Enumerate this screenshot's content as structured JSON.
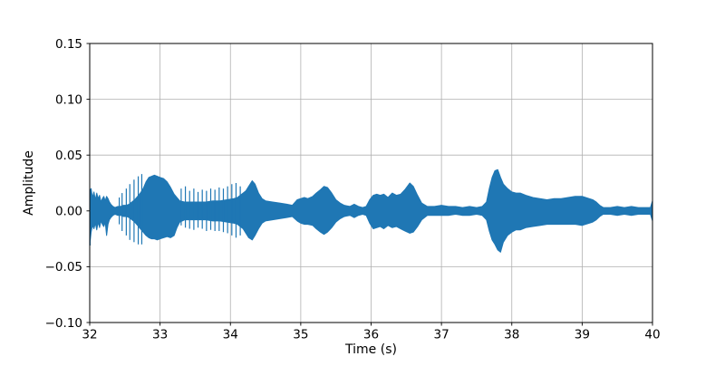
{
  "figure": {
    "background": "#ffffff"
  },
  "chart_data": {
    "type": "line",
    "subtype": "audio-waveform",
    "title": "",
    "xlabel": "Time (s)",
    "ylabel": "Amplitude",
    "xlim": [
      32,
      40
    ],
    "ylim": [
      -0.1,
      0.15
    ],
    "xticks": [
      32,
      33,
      34,
      35,
      36,
      37,
      38,
      39,
      40
    ],
    "xtick_labels": [
      "32",
      "33",
      "34",
      "35",
      "36",
      "37",
      "38",
      "39",
      "40"
    ],
    "yticks": [
      -0.1,
      -0.05,
      0.0,
      0.05,
      0.1,
      0.15
    ],
    "ytick_labels": [
      "−0.10",
      "−0.05",
      "0.00",
      "0.05",
      "0.10",
      "0.15"
    ],
    "grid": true,
    "grid_color": "#b0b0b0",
    "spine_color": "#000000",
    "line_color": "#1f77b4",
    "legend": null,
    "envelope_note": "samples of [time_s, lower_amplitude, upper_amplitude] of the waveform envelope",
    "envelope": [
      [
        32.0,
        -0.031,
        0.018
      ],
      [
        32.02,
        -0.019,
        0.02
      ],
      [
        32.04,
        -0.013,
        0.012
      ],
      [
        32.06,
        -0.016,
        0.017
      ],
      [
        32.08,
        -0.011,
        0.01
      ],
      [
        32.1,
        -0.017,
        0.016
      ],
      [
        32.12,
        -0.01,
        0.011
      ],
      [
        32.14,
        -0.015,
        0.014
      ],
      [
        32.16,
        -0.009,
        0.008
      ],
      [
        32.18,
        -0.012,
        0.011
      ],
      [
        32.2,
        -0.014,
        0.013
      ],
      [
        32.22,
        -0.01,
        0.009
      ],
      [
        32.24,
        -0.022,
        0.013
      ],
      [
        32.26,
        -0.012,
        0.011
      ],
      [
        32.28,
        -0.008,
        0.008
      ],
      [
        32.3,
        -0.006,
        0.006
      ],
      [
        32.33,
        -0.004,
        0.004
      ],
      [
        32.36,
        -0.003,
        0.003
      ],
      [
        32.4,
        -0.004,
        0.004
      ],
      [
        32.44,
        -0.004,
        0.004
      ],
      [
        32.48,
        -0.005,
        0.005
      ],
      [
        32.52,
        -0.005,
        0.005
      ],
      [
        32.56,
        -0.006,
        0.006
      ],
      [
        32.6,
        -0.008,
        0.008
      ],
      [
        32.64,
        -0.01,
        0.01
      ],
      [
        32.68,
        -0.013,
        0.013
      ],
      [
        32.72,
        -0.016,
        0.016
      ],
      [
        32.76,
        -0.019,
        0.02
      ],
      [
        32.8,
        -0.022,
        0.026
      ],
      [
        32.84,
        -0.024,
        0.03
      ],
      [
        32.88,
        -0.025,
        0.031
      ],
      [
        32.92,
        -0.025,
        0.032
      ],
      [
        32.96,
        -0.026,
        0.031
      ],
      [
        33.0,
        -0.025,
        0.03
      ],
      [
        33.05,
        -0.024,
        0.029
      ],
      [
        33.1,
        -0.023,
        0.026
      ],
      [
        33.15,
        -0.024,
        0.021
      ],
      [
        33.2,
        -0.022,
        0.015
      ],
      [
        33.24,
        -0.015,
        0.012
      ],
      [
        33.28,
        -0.01,
        0.009
      ],
      [
        33.35,
        -0.008,
        0.008
      ],
      [
        33.45,
        -0.008,
        0.008
      ],
      [
        33.55,
        -0.008,
        0.008
      ],
      [
        33.65,
        -0.008,
        0.008
      ],
      [
        33.75,
        -0.009,
        0.009
      ],
      [
        33.85,
        -0.009,
        0.009
      ],
      [
        33.95,
        -0.01,
        0.01
      ],
      [
        34.05,
        -0.011,
        0.011
      ],
      [
        34.1,
        -0.012,
        0.012
      ],
      [
        34.14,
        -0.014,
        0.014
      ],
      [
        34.18,
        -0.016,
        0.016
      ],
      [
        34.22,
        -0.02,
        0.018
      ],
      [
        34.26,
        -0.024,
        0.022
      ],
      [
        34.31,
        -0.026,
        0.027
      ],
      [
        34.35,
        -0.022,
        0.024
      ],
      [
        34.4,
        -0.016,
        0.016
      ],
      [
        34.45,
        -0.011,
        0.011
      ],
      [
        34.5,
        -0.009,
        0.009
      ],
      [
        34.6,
        -0.008,
        0.008
      ],
      [
        34.7,
        -0.007,
        0.007
      ],
      [
        34.8,
        -0.006,
        0.006
      ],
      [
        34.88,
        -0.005,
        0.005
      ],
      [
        34.95,
        -0.009,
        0.01
      ],
      [
        35.0,
        -0.011,
        0.011
      ],
      [
        35.05,
        -0.012,
        0.012
      ],
      [
        35.1,
        -0.012,
        0.011
      ],
      [
        35.17,
        -0.013,
        0.013
      ],
      [
        35.22,
        -0.016,
        0.016
      ],
      [
        35.28,
        -0.019,
        0.019
      ],
      [
        35.33,
        -0.021,
        0.022
      ],
      [
        35.38,
        -0.019,
        0.021
      ],
      [
        35.44,
        -0.015,
        0.016
      ],
      [
        35.5,
        -0.01,
        0.01
      ],
      [
        35.56,
        -0.007,
        0.007
      ],
      [
        35.62,
        -0.005,
        0.005
      ],
      [
        35.7,
        -0.004,
        0.004
      ],
      [
        35.76,
        -0.006,
        0.006
      ],
      [
        35.82,
        -0.004,
        0.004
      ],
      [
        35.88,
        -0.003,
        0.003
      ],
      [
        35.93,
        -0.004,
        0.004
      ],
      [
        35.98,
        -0.011,
        0.01
      ],
      [
        36.03,
        -0.016,
        0.014
      ],
      [
        36.08,
        -0.015,
        0.015
      ],
      [
        36.13,
        -0.014,
        0.014
      ],
      [
        36.18,
        -0.016,
        0.015
      ],
      [
        36.24,
        -0.013,
        0.012
      ],
      [
        36.3,
        -0.015,
        0.016
      ],
      [
        36.36,
        -0.014,
        0.014
      ],
      [
        36.42,
        -0.016,
        0.015
      ],
      [
        36.48,
        -0.018,
        0.019
      ],
      [
        36.55,
        -0.02,
        0.025
      ],
      [
        36.6,
        -0.019,
        0.022
      ],
      [
        36.66,
        -0.014,
        0.014
      ],
      [
        36.72,
        -0.008,
        0.007
      ],
      [
        36.8,
        -0.004,
        0.004
      ],
      [
        36.9,
        -0.004,
        0.004
      ],
      [
        37.0,
        -0.004,
        0.005
      ],
      [
        37.1,
        -0.004,
        0.004
      ],
      [
        37.2,
        -0.003,
        0.004
      ],
      [
        37.3,
        -0.004,
        0.003
      ],
      [
        37.4,
        -0.004,
        0.004
      ],
      [
        37.5,
        -0.003,
        0.003
      ],
      [
        37.58,
        -0.004,
        0.004
      ],
      [
        37.64,
        -0.008,
        0.008
      ],
      [
        37.68,
        -0.018,
        0.02
      ],
      [
        37.72,
        -0.026,
        0.03
      ],
      [
        37.76,
        -0.03,
        0.036
      ],
      [
        37.8,
        -0.035,
        0.037
      ],
      [
        37.84,
        -0.037,
        0.03
      ],
      [
        37.88,
        -0.028,
        0.024
      ],
      [
        37.94,
        -0.022,
        0.02
      ],
      [
        38.0,
        -0.019,
        0.017
      ],
      [
        38.06,
        -0.017,
        0.016
      ],
      [
        38.12,
        -0.017,
        0.016
      ],
      [
        38.2,
        -0.015,
        0.014
      ],
      [
        38.3,
        -0.014,
        0.012
      ],
      [
        38.4,
        -0.013,
        0.011
      ],
      [
        38.5,
        -0.012,
        0.01
      ],
      [
        38.6,
        -0.012,
        0.011
      ],
      [
        38.7,
        -0.012,
        0.011
      ],
      [
        38.8,
        -0.012,
        0.012
      ],
      [
        38.9,
        -0.012,
        0.013
      ],
      [
        39.0,
        -0.013,
        0.013
      ],
      [
        39.1,
        -0.011,
        0.011
      ],
      [
        39.15,
        -0.01,
        0.01
      ],
      [
        39.2,
        -0.008,
        0.008
      ],
      [
        39.25,
        -0.005,
        0.005
      ],
      [
        39.3,
        -0.003,
        0.003
      ],
      [
        39.4,
        -0.003,
        0.003
      ],
      [
        39.5,
        -0.004,
        0.004
      ],
      [
        39.6,
        -0.003,
        0.003
      ],
      [
        39.7,
        -0.004,
        0.004
      ],
      [
        39.8,
        -0.003,
        0.003
      ],
      [
        39.9,
        -0.003,
        0.003
      ],
      [
        39.97,
        -0.003,
        0.003
      ],
      [
        40.0,
        -0.009,
        0.009
      ]
    ],
    "spikes_note": "isolated vertical transient spikes [time_s, lower, upper]",
    "spikes": [
      [
        32.005,
        -0.031,
        0.019
      ],
      [
        32.42,
        -0.012,
        0.012
      ],
      [
        32.46,
        -0.018,
        0.016
      ],
      [
        32.52,
        -0.022,
        0.02
      ],
      [
        32.57,
        -0.026,
        0.024
      ],
      [
        32.63,
        -0.028,
        0.028
      ],
      [
        32.69,
        -0.03,
        0.031
      ],
      [
        32.74,
        -0.03,
        0.033
      ],
      [
        33.3,
        -0.013,
        0.02
      ],
      [
        33.36,
        -0.015,
        0.022
      ],
      [
        33.42,
        -0.016,
        0.018
      ],
      [
        33.48,
        -0.017,
        0.02
      ],
      [
        33.54,
        -0.015,
        0.017
      ],
      [
        33.6,
        -0.016,
        0.019
      ],
      [
        33.66,
        -0.018,
        0.018
      ],
      [
        33.72,
        -0.017,
        0.02
      ],
      [
        33.78,
        -0.018,
        0.019
      ],
      [
        33.84,
        -0.018,
        0.021
      ],
      [
        33.9,
        -0.019,
        0.02
      ],
      [
        33.96,
        -0.02,
        0.022
      ],
      [
        34.02,
        -0.022,
        0.024
      ],
      [
        34.08,
        -0.024,
        0.025
      ],
      [
        34.14,
        -0.022,
        0.022
      ]
    ]
  }
}
